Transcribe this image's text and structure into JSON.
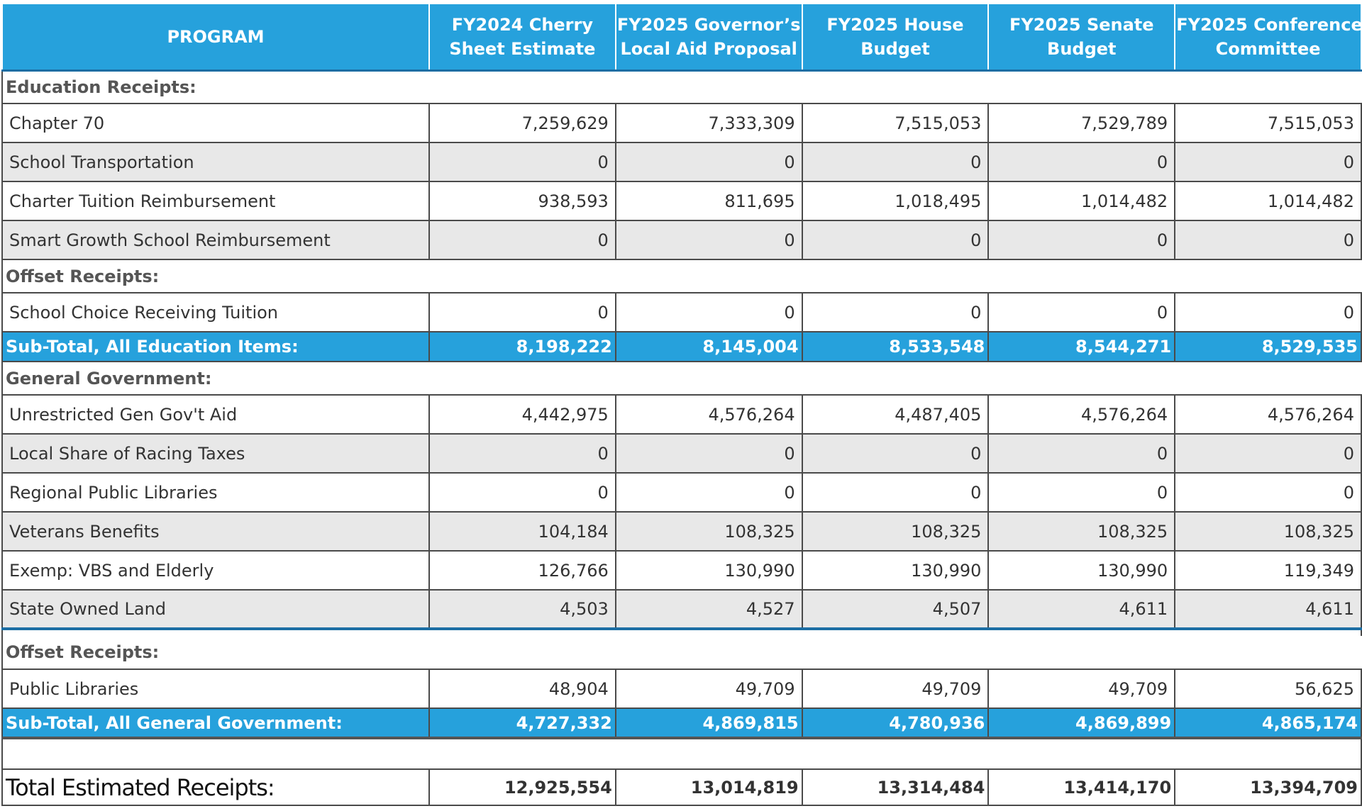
{
  "columns": {
    "program": "PROGRAM",
    "fy24_cherry_l1": "FY2024 Cherry",
    "fy24_cherry_l2": "Sheet Estimate",
    "fy25_gov_l1": "FY2025 Governor’s",
    "fy25_gov_l2": "Local Aid Proposal",
    "fy25_house_l1": "FY2025 House",
    "fy25_house_l2": "Budget",
    "fy25_senate_l1": "FY2025 Senate",
    "fy25_senate_l2": "Budget",
    "fy25_conf_l1": "FY2025 Conference",
    "fy25_conf_l2": "Committee"
  },
  "education": {
    "heading": "Education Receipts:",
    "rows": [
      {
        "program": "Chapter 70",
        "v": [
          "7,259,629",
          "7,333,309",
          "7,515,053",
          "7,529,789",
          "7,515,053"
        ]
      },
      {
        "program": "School Transportation",
        "v": [
          "0",
          "0",
          "0",
          "0",
          "0"
        ]
      },
      {
        "program": "Charter Tuition Reimbursement",
        "v": [
          "938,593",
          "811,695",
          "1,018,495",
          "1,014,482",
          "1,014,482"
        ]
      },
      {
        "program": "Smart Growth School Reimbursement",
        "v": [
          "0",
          "0",
          "0",
          "0",
          "0"
        ]
      }
    ],
    "offset_heading": "Offset Receipts:",
    "offset_rows": [
      {
        "program": "School Choice Receiving Tuition",
        "v": [
          "0",
          "0",
          "0",
          "0",
          "0"
        ]
      }
    ],
    "subtotal": {
      "label": "Sub-Total, All Education Items:",
      "v": [
        "8,198,222",
        "8,145,004",
        "8,533,548",
        "8,544,271",
        "8,529,535"
      ]
    }
  },
  "general_government": {
    "heading": "General Government:",
    "rows": [
      {
        "program": "Unrestricted Gen Gov't Aid",
        "v": [
          "4,442,975",
          "4,576,264",
          "4,487,405",
          "4,576,264",
          "4,576,264"
        ]
      },
      {
        "program": "Local Share of Racing Taxes",
        "v": [
          "0",
          "0",
          "0",
          "0",
          "0"
        ]
      },
      {
        "program": "Regional Public Libraries",
        "v": [
          "0",
          "0",
          "0",
          "0",
          "0"
        ]
      },
      {
        "program": "Veterans Benefits",
        "v": [
          "104,184",
          "108,325",
          "108,325",
          "108,325",
          "108,325"
        ]
      },
      {
        "program": "Exemp: VBS and Elderly",
        "v": [
          "126,766",
          "130,990",
          "130,990",
          "130,990",
          "119,349"
        ]
      },
      {
        "program": "State Owned Land",
        "v": [
          "4,503",
          "4,527",
          "4,507",
          "4,611",
          "4,611"
        ]
      }
    ],
    "offset_heading": "Offset Receipts:",
    "offset_rows": [
      {
        "program": "Public Libraries",
        "v": [
          "48,904",
          "49,709",
          "49,709",
          "49,709",
          "56,625"
        ]
      }
    ],
    "subtotal": {
      "label": "Sub-Total, All General Government:",
      "v": [
        "4,727,332",
        "4,869,815",
        "4,780,936",
        "4,869,899",
        "4,865,174"
      ]
    }
  },
  "total": {
    "label": "Total Estimated Receipts:",
    "v": [
      "12,925,554",
      "13,014,819",
      "13,314,484",
      "13,414,170",
      "13,394,709"
    ]
  }
}
